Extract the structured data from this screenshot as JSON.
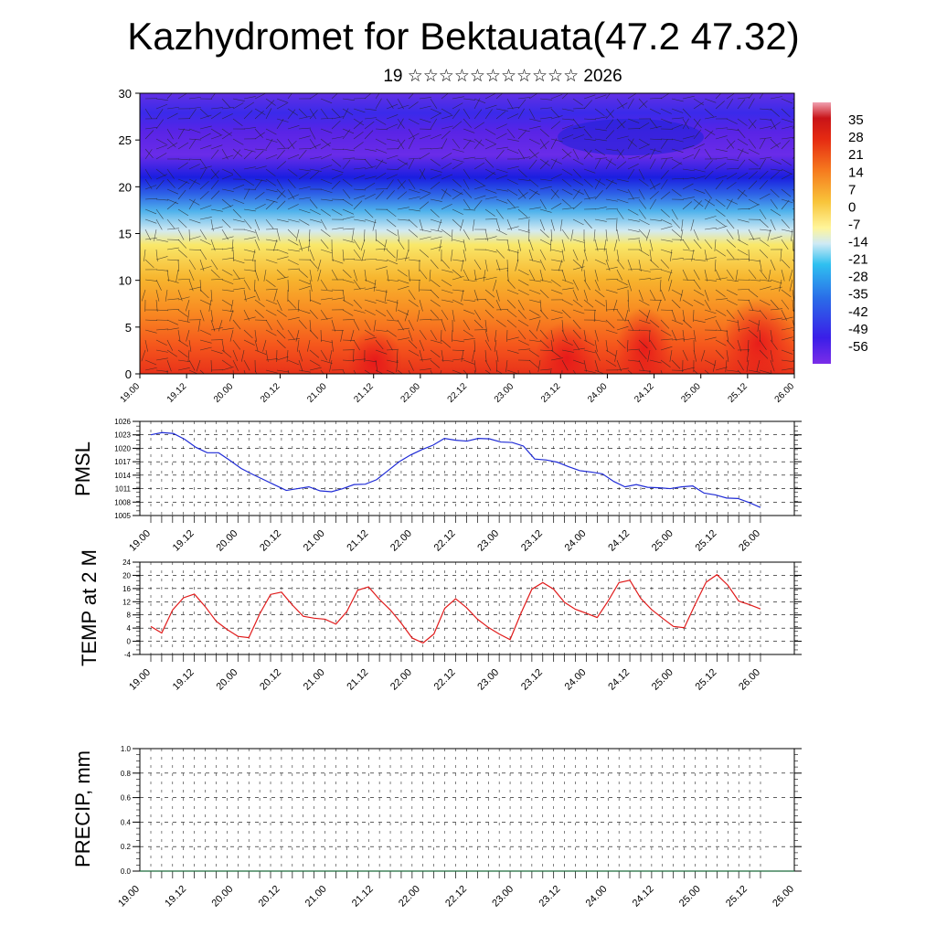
{
  "title": "Kazhydromet for Bektauata(47.2 47.32)",
  "subtitle": "19 ☆☆☆☆☆☆☆☆☆☆☆ 2026",
  "colors": {
    "pressure_line": "#1f2bd6",
    "temperature_line": "#e01a1a",
    "precip_line": "#1a6b3a",
    "grid": "#000000"
  },
  "chart_data": [
    {
      "type": "heatmap",
      "name": "temperature-wind-cross-section",
      "ylim": [
        0,
        30
      ],
      "yticks": [
        0,
        5,
        10,
        15,
        20,
        25,
        30
      ],
      "xlabels": [
        "19.00",
        "19.12",
        "20.00",
        "20.12",
        "21.00",
        "21.12",
        "22.00",
        "22.12",
        "23.00",
        "23.12",
        "24.00",
        "24.12",
        "25.00",
        "25.12",
        "26.00"
      ],
      "colorbar": {
        "labels": [
          "35",
          "28",
          "21",
          "14",
          "7",
          "0",
          "-7",
          "-14",
          "-21",
          "-28",
          "-35",
          "-42",
          "-49",
          "-56"
        ],
        "range": [
          -63,
          42
        ]
      },
      "overlay": "wind barbs"
    },
    {
      "type": "line",
      "name": "pmsl",
      "ylabel": "PMSL",
      "ylim": [
        1005,
        1026
      ],
      "yticks": [
        1005,
        1008,
        1011,
        1014,
        1017,
        1020,
        1023,
        1026
      ],
      "xlabels": [
        "19.00",
        "19.12",
        "20.00",
        "20.12",
        "21.00",
        "21.12",
        "22.00",
        "22.12",
        "23.00",
        "23.12",
        "24.00",
        "24.12",
        "25.00",
        "25.12",
        "26.00"
      ],
      "values": [
        1023,
        1023.5,
        1023.3,
        1022,
        1020.2,
        1019,
        1019,
        1017.3,
        1015.5,
        1014.2,
        1013,
        1011.8,
        1010.6,
        1011,
        1011.4,
        1010.5,
        1010.3,
        1011,
        1011.9,
        1012,
        1013,
        1015,
        1017,
        1018.5,
        1019.7,
        1020.7,
        1022.2,
        1021.8,
        1021.6,
        1022.2,
        1022.1,
        1021.4,
        1021.3,
        1020.5,
        1017.6,
        1017.4,
        1016.9,
        1015.9,
        1015,
        1014.7,
        1014.3,
        1012.6,
        1011.4,
        1011.9,
        1011.3,
        1011.2,
        1011,
        1011.4,
        1011.6,
        1010,
        1009.6,
        1008.9,
        1008.8,
        1007.9,
        1006.8
      ]
    },
    {
      "type": "line",
      "name": "temp-2m",
      "ylabel": "TEMP at 2 M",
      "ylim": [
        -4,
        24
      ],
      "yticks": [
        -4,
        0,
        4,
        8,
        12,
        16,
        20,
        24
      ],
      "xlabels": [
        "19.00",
        "19.12",
        "20.00",
        "20.12",
        "21.00",
        "21.12",
        "22.00",
        "22.12",
        "23.00",
        "23.12",
        "24.00",
        "24.12",
        "25.00",
        "25.12",
        "26.00"
      ],
      "values": [
        4.5,
        2.5,
        9.5,
        13.2,
        14.3,
        10.5,
        6.1,
        3.6,
        1.5,
        1.1,
        8.3,
        14.2,
        14.9,
        11,
        7.6,
        7,
        6.7,
        5.2,
        9,
        15.5,
        16.5,
        12.7,
        9.5,
        5.5,
        1,
        -0.5,
        2.2,
        10,
        12.9,
        10.2,
        6.7,
        4.2,
        2.2,
        0.5,
        8.5,
        15.8,
        17.8,
        15.8,
        11.8,
        9.7,
        8.5,
        7.2,
        12.2,
        17.8,
        18.5,
        13,
        9.6,
        7,
        4.5,
        4.1,
        11.2,
        17.9,
        20.2,
        17,
        12.2,
        11.1,
        9.8
      ]
    },
    {
      "type": "line",
      "name": "precip",
      "ylabel": "PRECIP, mm",
      "ylim": [
        0,
        1
      ],
      "yticks": [
        "0.0",
        "0.2",
        "0.4",
        "0.6",
        "0.8",
        "1.0"
      ],
      "xlabels": [
        "19.00",
        "19.12",
        "20.00",
        "20.12",
        "21.00",
        "21.12",
        "22.00",
        "22.12",
        "23.00",
        "23.12",
        "24.00",
        "24.12",
        "25.00",
        "25.12",
        "26.00"
      ],
      "values": [
        0,
        0,
        0,
        0,
        0,
        0,
        0,
        0,
        0,
        0,
        0,
        0,
        0,
        0,
        0
      ]
    }
  ]
}
